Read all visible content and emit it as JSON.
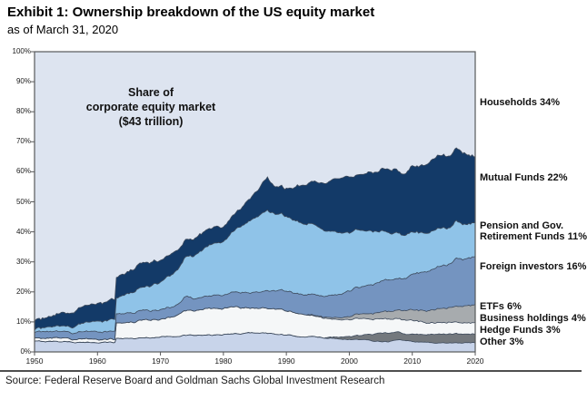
{
  "header": {
    "title": "Exhibit 1: Ownership breakdown of the US equity market",
    "subtitle": "as of March 31, 2020"
  },
  "annotation": {
    "line1": "Share of",
    "line2": "corporate equity market",
    "line3": "($43 trillion)"
  },
  "source": "Source: Federal Reserve Board and Goldman Sachs Global Investment Research",
  "chart_data": {
    "type": "area",
    "stacked": true,
    "title": "Share of corporate equity market ($43 trillion)",
    "xlabel": "",
    "ylabel": "",
    "xlim": [
      1950,
      2020
    ],
    "ylim": [
      0,
      100
    ],
    "grid": false,
    "legend_position": "right",
    "x_ticks": [
      "1950",
      "1960",
      "1970",
      "1980",
      "1990",
      "2000",
      "2010",
      "2020"
    ],
    "y_ticks": [
      "0%",
      "10%",
      "20%",
      "30%",
      "40%",
      "50%",
      "60%",
      "70%",
      "80%",
      "90%",
      "100%"
    ],
    "axis_color": "#58595b",
    "outline_color": "#3d4a5c",
    "background_series": {
      "name": "Households",
      "label": "Households 34%",
      "share_2020_pct": 34,
      "color": "#dde4f0"
    },
    "series": [
      {
        "name": "Other",
        "label": "Other 3%",
        "share_2020_pct": 3,
        "color": "#c8d4ea",
        "wiggle": 0.25,
        "points": [
          [
            1950,
            3.5
          ],
          [
            1955,
            3.5
          ],
          [
            1958,
            3.0
          ],
          [
            1960,
            3.2
          ],
          [
            1962.75,
            3.2
          ],
          [
            1963,
            4.5
          ],
          [
            1966,
            4.5
          ],
          [
            1970,
            5.0
          ],
          [
            1974,
            5.5
          ],
          [
            1978,
            5.5
          ],
          [
            1982,
            6.0
          ],
          [
            1986,
            6.5
          ],
          [
            1990,
            5.5
          ],
          [
            1994,
            5.0
          ],
          [
            1998,
            4.5
          ],
          [
            2002,
            4.0
          ],
          [
            2006,
            3.5
          ],
          [
            2008,
            4.0
          ],
          [
            2010,
            3.5
          ],
          [
            2014,
            3.0
          ],
          [
            2020,
            3.0
          ]
        ]
      },
      {
        "name": "Hedge Funds",
        "label": "Hedge Funds 3%",
        "share_2020_pct": 3,
        "color": "#73787d",
        "wiggle": 0.2,
        "points": [
          [
            1950,
            0
          ],
          [
            1996,
            0
          ],
          [
            1998,
            0.5
          ],
          [
            2000,
            1.0
          ],
          [
            2002,
            1.5
          ],
          [
            2004,
            2.5
          ],
          [
            2006,
            3.0
          ],
          [
            2008,
            2.5
          ],
          [
            2009,
            2.0
          ],
          [
            2010,
            2.5
          ],
          [
            2012,
            2.5
          ],
          [
            2014,
            3.0
          ],
          [
            2016,
            3.0
          ],
          [
            2018,
            3.0
          ],
          [
            2020,
            3.0
          ]
        ]
      },
      {
        "name": "Business holdings",
        "label": "Business holdings 4%",
        "share_2020_pct": 4,
        "color": "#f5f7f8",
        "wiggle": 0.3,
        "points": [
          [
            1950,
            1.0
          ],
          [
            1955,
            1.0
          ],
          [
            1960,
            1.0
          ],
          [
            1962.75,
            1.0
          ],
          [
            1963,
            5.0
          ],
          [
            1965,
            5.5
          ],
          [
            1968,
            6.0
          ],
          [
            1970,
            6.0
          ],
          [
            1972,
            6.5
          ],
          [
            1974,
            8.0
          ],
          [
            1976,
            8.5
          ],
          [
            1978,
            9.0
          ],
          [
            1980,
            8.5
          ],
          [
            1982,
            9.0
          ],
          [
            1985,
            8.0
          ],
          [
            1987,
            8.5
          ],
          [
            1990,
            8.0
          ],
          [
            1992,
            7.5
          ],
          [
            1994,
            7.0
          ],
          [
            1996,
            6.5
          ],
          [
            1998,
            6.0
          ],
          [
            2000,
            5.5
          ],
          [
            2002,
            5.5
          ],
          [
            2004,
            5.0
          ],
          [
            2006,
            4.5
          ],
          [
            2010,
            4.5
          ],
          [
            2012,
            4.0
          ],
          [
            2020,
            4.0
          ]
        ]
      },
      {
        "name": "ETFs",
        "label": "ETFs 6%",
        "share_2020_pct": 6,
        "color": "#a7abae",
        "wiggle": 0.15,
        "points": [
          [
            1950,
            0
          ],
          [
            1993,
            0
          ],
          [
            1994,
            0.2
          ],
          [
            1996,
            0.3
          ],
          [
            1998,
            0.7
          ],
          [
            2000,
            1.0
          ],
          [
            2002,
            1.5
          ],
          [
            2004,
            2.0
          ],
          [
            2006,
            2.5
          ],
          [
            2008,
            3.0
          ],
          [
            2010,
            3.5
          ],
          [
            2012,
            4.0
          ],
          [
            2014,
            4.5
          ],
          [
            2016,
            5.0
          ],
          [
            2018,
            5.5
          ],
          [
            2020,
            6.0
          ]
        ]
      },
      {
        "name": "Foreign investors",
        "label": "Foreign investors 16%",
        "share_2020_pct": 16,
        "color": "#7494c0",
        "wiggle": 0.3,
        "points": [
          [
            1950,
            2.0
          ],
          [
            1955,
            2.0
          ],
          [
            1958,
            2.5
          ],
          [
            1962,
            2.5
          ],
          [
            1963,
            3.0
          ],
          [
            1968,
            3.0
          ],
          [
            1971,
            3.2
          ],
          [
            1973,
            3.5
          ],
          [
            1974,
            4.8
          ],
          [
            1975,
            4.0
          ],
          [
            1978,
            4.0
          ],
          [
            1980,
            4.5
          ],
          [
            1982,
            5.0
          ],
          [
            1984,
            5.0
          ],
          [
            1986,
            5.5
          ],
          [
            1987,
            6.2
          ],
          [
            1988,
            6.0
          ],
          [
            1990,
            6.5
          ],
          [
            1993,
            6.5
          ],
          [
            1996,
            7.0
          ],
          [
            1998,
            7.5
          ],
          [
            2000,
            8.5
          ],
          [
            2002,
            9.0
          ],
          [
            2004,
            10.0
          ],
          [
            2006,
            10.5
          ],
          [
            2008,
            10.5
          ],
          [
            2009,
            11.0
          ],
          [
            2010,
            12.0
          ],
          [
            2012,
            13.0
          ],
          [
            2014,
            14.0
          ],
          [
            2016,
            14.5
          ],
          [
            2017,
            16.0
          ],
          [
            2018,
            15.5
          ],
          [
            2019,
            16.0
          ],
          [
            2020,
            16.0
          ]
        ]
      },
      {
        "name": "Pension and Gov. Retirement Funds",
        "label": "Pension and Gov. Retirement Funds 11%",
        "label_lines": [
          "Pension and Gov.",
          "Retirement Funds 11%"
        ],
        "share_2020_pct": 11,
        "color": "#8fc3e8",
        "wiggle": 0.4,
        "points": [
          [
            1950,
            1.0
          ],
          [
            1952,
            1.5
          ],
          [
            1955,
            2.0
          ],
          [
            1958,
            3.0
          ],
          [
            1960,
            3.5
          ],
          [
            1962.75,
            4.0
          ],
          [
            1963,
            5.5
          ],
          [
            1965,
            6.5
          ],
          [
            1968,
            8.0
          ],
          [
            1970,
            9.5
          ],
          [
            1972,
            11.0
          ],
          [
            1974,
            13.0
          ],
          [
            1976,
            15.0
          ],
          [
            1978,
            17.0
          ],
          [
            1980,
            18.0
          ],
          [
            1982,
            21.0
          ],
          [
            1984,
            24.0
          ],
          [
            1986,
            26.0
          ],
          [
            1987,
            27.0
          ],
          [
            1988,
            26.0
          ],
          [
            1990,
            25.0
          ],
          [
            1992,
            24.0
          ],
          [
            1994,
            23.5
          ],
          [
            1996,
            22.0
          ],
          [
            1998,
            21.0
          ],
          [
            2000,
            19.5
          ],
          [
            2002,
            19.0
          ],
          [
            2004,
            17.5
          ],
          [
            2006,
            16.0
          ],
          [
            2008,
            15.0
          ],
          [
            2009,
            14.5
          ],
          [
            2010,
            14.0
          ],
          [
            2012,
            13.0
          ],
          [
            2014,
            12.5
          ],
          [
            2016,
            12.0
          ],
          [
            2017,
            12.5
          ],
          [
            2018,
            11.5
          ],
          [
            2020,
            11.0
          ]
        ]
      },
      {
        "name": "Mutual Funds",
        "label": "Mutual Funds 22%",
        "share_2020_pct": 22,
        "color": "#133a68",
        "wiggle": 0.45,
        "points": [
          [
            1950,
            3.0
          ],
          [
            1952,
            3.5
          ],
          [
            1955,
            4.5
          ],
          [
            1958,
            5.5
          ],
          [
            1960,
            6.0
          ],
          [
            1962,
            6.5
          ],
          [
            1963,
            7.0
          ],
          [
            1965,
            7.5
          ],
          [
            1968,
            8.0
          ],
          [
            1970,
            7.5
          ],
          [
            1972,
            7.0
          ],
          [
            1974,
            6.0
          ],
          [
            1976,
            5.8
          ],
          [
            1978,
            5.5
          ],
          [
            1980,
            5.0
          ],
          [
            1982,
            5.5
          ],
          [
            1984,
            7.0
          ],
          [
            1986,
            9.5
          ],
          [
            1987,
            11.0
          ],
          [
            1988,
            9.0
          ],
          [
            1990,
            9.5
          ],
          [
            1992,
            12.0
          ],
          [
            1994,
            14.0
          ],
          [
            1996,
            16.0
          ],
          [
            1998,
            18.0
          ],
          [
            2000,
            19.0
          ],
          [
            2001,
            18.0
          ],
          [
            2002,
            18.5
          ],
          [
            2004,
            20.0
          ],
          [
            2006,
            21.0
          ],
          [
            2007,
            21.5
          ],
          [
            2008,
            20.5
          ],
          [
            2009,
            21.0
          ],
          [
            2010,
            22.0
          ],
          [
            2012,
            22.5
          ],
          [
            2014,
            24.0
          ],
          [
            2016,
            24.0
          ],
          [
            2017,
            24.5
          ],
          [
            2018,
            24.0
          ],
          [
            2019,
            23.0
          ],
          [
            2020,
            22.0
          ]
        ]
      }
    ]
  }
}
